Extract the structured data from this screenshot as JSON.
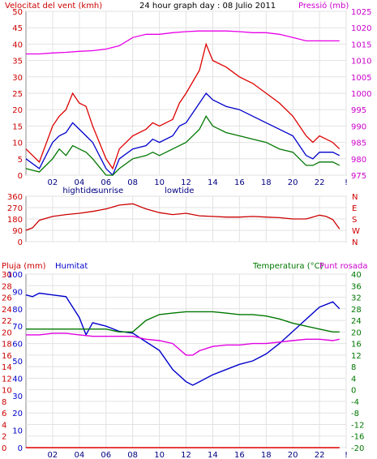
{
  "chart_data": [
    {
      "type": "line",
      "title": "24 hour graph day : 08 Julio 2011",
      "left_label": "Velocitat del vent (kmh)",
      "right_label": "Pressió (mb)",
      "x_ticks": [
        "02",
        "04",
        "06",
        "08",
        "10",
        "12",
        "14",
        "16",
        "18",
        "20",
        "22",
        "!"
      ],
      "x_annotations": [
        {
          "text": "hightide",
          "hour": 4.0
        },
        {
          "text": "sunrise",
          "hour": 6.2
        },
        {
          "text": "lowtide",
          "hour": 11.5
        }
      ],
      "ylim_left": [
        0,
        50
      ],
      "yticks_left": [
        0,
        5,
        10,
        15,
        20,
        25,
        30,
        35,
        40,
        45,
        50
      ],
      "ylim_right": [
        975,
        1025
      ],
      "yticks_right": [
        975,
        980,
        985,
        990,
        995,
        1000,
        1005,
        1010,
        1015,
        1020,
        1025
      ],
      "series": [
        {
          "axis": "right",
          "color": "#e800e8",
          "x": [
            0,
            1,
            2,
            3,
            4,
            5,
            6,
            7,
            8,
            9,
            10,
            11,
            12,
            13,
            14,
            15,
            16,
            17,
            18,
            19,
            20,
            21,
            22,
            23,
            23.5
          ],
          "values": [
            1012.0,
            1012.0,
            1012.3,
            1012.5,
            1012.8,
            1013.0,
            1013.5,
            1014.5,
            1017.0,
            1018.0,
            1018.0,
            1018.5,
            1018.8,
            1019.0,
            1019.0,
            1019.0,
            1018.8,
            1018.5,
            1018.5,
            1018.0,
            1017.0,
            1016.0,
            1016.0,
            1016.0,
            1016.0
          ]
        },
        {
          "axis": "left",
          "color": "#dd0000",
          "x": [
            0,
            1,
            2,
            2.5,
            3,
            3.5,
            4,
            4.5,
            5,
            6,
            6.5,
            7,
            8,
            9,
            9.5,
            10,
            11,
            11.5,
            12,
            13,
            13.5,
            14,
            15,
            16,
            17,
            18,
            19,
            20,
            21,
            21.5,
            22,
            23,
            23.5
          ],
          "values": [
            8,
            4,
            15,
            18,
            20,
            25,
            22,
            21,
            15,
            5,
            2,
            8,
            12,
            14,
            16,
            15,
            17,
            22,
            25,
            32,
            40,
            35,
            33,
            30,
            28,
            25,
            22,
            18,
            12,
            10,
            12,
            10,
            8
          ]
        },
        {
          "axis": "left",
          "color": "#0000cc",
          "x": [
            0,
            1,
            2,
            2.5,
            3,
            3.5,
            4,
            4.5,
            5,
            6,
            6.5,
            7,
            8,
            9,
            9.5,
            10,
            11,
            11.5,
            12,
            13,
            13.5,
            14,
            15,
            16,
            17,
            18,
            19,
            20,
            21,
            21.5,
            22,
            23,
            23.5
          ],
          "values": [
            5,
            2,
            10,
            12,
            13,
            16,
            14,
            12,
            10,
            2,
            0,
            5,
            8,
            9,
            11,
            10,
            12,
            15,
            16,
            22,
            25,
            23,
            21,
            20,
            18,
            16,
            14,
            12,
            6,
            5,
            7,
            7,
            6
          ]
        },
        {
          "axis": "left",
          "color": "#007700",
          "x": [
            0,
            1,
            2,
            2.5,
            3,
            3.5,
            4,
            4.5,
            5,
            6,
            6.5,
            7,
            8,
            9,
            9.5,
            10,
            11,
            11.5,
            12,
            13,
            13.5,
            14,
            15,
            16,
            17,
            18,
            19,
            20,
            21,
            21.5,
            22,
            23,
            23.5
          ],
          "values": [
            2,
            1,
            5,
            8,
            6,
            9,
            8,
            7,
            5,
            0,
            0,
            2,
            5,
            6,
            7,
            6,
            8,
            9,
            10,
            14,
            18,
            15,
            13,
            12,
            11,
            10,
            8,
            7,
            3,
            3,
            4,
            4,
            3
          ]
        }
      ]
    },
    {
      "type": "line",
      "x_ticks": [],
      "ylim": [
        0,
        360
      ],
      "yticks_left": [
        0,
        90,
        180,
        270,
        360
      ],
      "right_labels": [
        "N",
        "W",
        "S",
        "E",
        "N"
      ],
      "series": [
        {
          "axis": "left",
          "color": "#cc0000",
          "x": [
            0,
            0.5,
            1,
            2,
            3,
            4,
            5,
            6,
            7,
            8,
            9,
            10,
            11,
            12,
            13,
            14,
            15,
            16,
            17,
            18,
            19,
            20,
            21,
            22,
            22.5,
            23,
            23.5
          ],
          "values": [
            90,
            110,
            170,
            200,
            215,
            225,
            240,
            260,
            290,
            300,
            260,
            230,
            215,
            225,
            205,
            200,
            195,
            195,
            200,
            195,
            190,
            180,
            180,
            210,
            200,
            175,
            100
          ]
        }
      ]
    },
    {
      "type": "line",
      "left_label_1": "Pluja (mm)",
      "left_label_2": "Humitat",
      "right_label_1": "Temperatura (°C)",
      "right_label_2": "Punt rosada",
      "x_ticks": [
        "02",
        "04",
        "06",
        "08",
        "10",
        "12",
        "14",
        "16",
        "18",
        "20",
        "22",
        "!"
      ],
      "x_annotations": [
        {
          "text": "hightide",
          "hour": 4.0
        },
        {
          "text": "sunrise",
          "hour": 6.2
        },
        {
          "text": "lowtide",
          "hour": 11.5
        }
      ],
      "yticks_left_rain": [
        0,
        2,
        4,
        6,
        8,
        10,
        12,
        14,
        16,
        18,
        20,
        22,
        24,
        26,
        28,
        30
      ],
      "yticks_left_humidity": [
        0,
        10,
        20,
        30,
        40,
        50,
        60,
        70,
        80,
        90,
        100
      ],
      "ylim_humidity": [
        0,
        100
      ],
      "ylim_right": [
        -20,
        40
      ],
      "yticks_right": [
        -20,
        -16,
        -12,
        -8,
        -4,
        0,
        4,
        8,
        12,
        16,
        20,
        24,
        28,
        32,
        36,
        40
      ],
      "series": [
        {
          "axis": "humidity",
          "color": "#0000cc",
          "x": [
            0,
            0.5,
            1,
            2,
            3,
            4,
            4.5,
            5,
            6,
            7,
            8,
            9,
            10,
            11,
            12,
            12.5,
            13,
            14,
            15,
            16,
            17,
            18,
            19,
            20,
            21,
            22,
            23,
            23.5
          ],
          "values": [
            88,
            87,
            89,
            88,
            87,
            75,
            65,
            72,
            70,
            67,
            66,
            61,
            56,
            45,
            38,
            36,
            38,
            42,
            45,
            48,
            50,
            54,
            60,
            67,
            74,
            81,
            84,
            80
          ]
        },
        {
          "axis": "right",
          "color": "#007700",
          "x": [
            0,
            1,
            2,
            3,
            4,
            5,
            6,
            7,
            8,
            9,
            10,
            11,
            12,
            13,
            14,
            15,
            16,
            17,
            18,
            19,
            20,
            21,
            22,
            23,
            23.5
          ],
          "values": [
            21,
            21,
            21,
            21,
            21,
            21,
            21,
            20,
            20,
            24,
            26,
            26.5,
            27,
            27,
            27,
            26.5,
            26,
            26,
            25.5,
            24.5,
            23,
            22,
            21,
            20,
            20
          ]
        },
        {
          "axis": "right",
          "color": "#e000e0",
          "x": [
            0,
            1,
            2,
            3,
            4,
            5,
            6,
            7,
            8,
            9,
            10,
            11,
            12,
            12.5,
            13,
            14,
            15,
            16,
            17,
            18,
            19,
            20,
            21,
            22,
            23,
            23.5
          ],
          "values": [
            19,
            19,
            19.5,
            19.5,
            19,
            18.5,
            18.5,
            18.5,
            18.5,
            17.5,
            17,
            16,
            12,
            12,
            13.5,
            15,
            15.5,
            15.5,
            16,
            16,
            16.5,
            17,
            17.5,
            17.5,
            17,
            17.5
          ]
        },
        {
          "axis": "rain",
          "color": "#dd0000",
          "x": [
            0,
            23.5
          ],
          "values": [
            0,
            0
          ]
        }
      ]
    }
  ]
}
